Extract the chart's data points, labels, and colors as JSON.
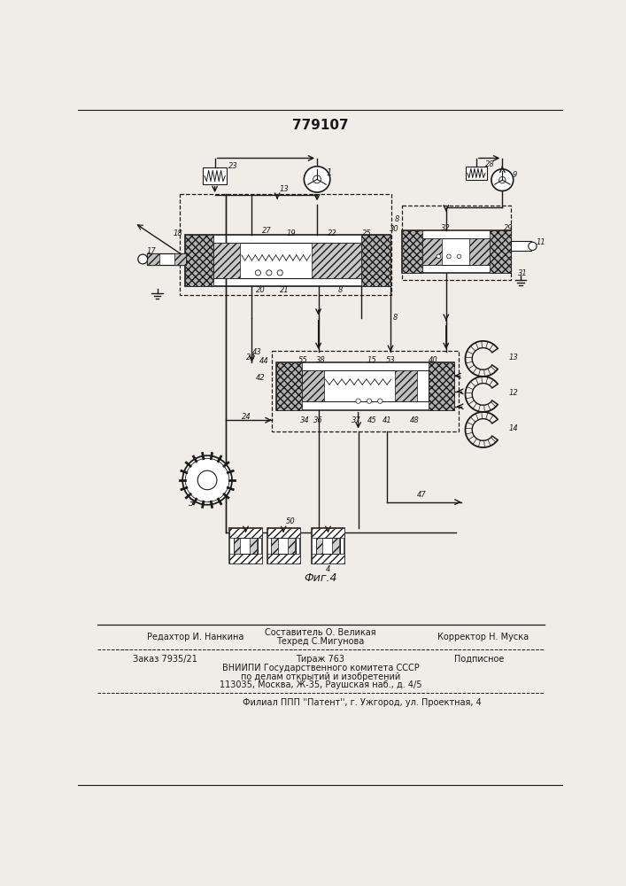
{
  "patent_number": "779107",
  "fig_label": "Фиг.4",
  "bg_color": "#f0ede8",
  "line_color": "#1a1a1a",
  "footer": {
    "line1_left": "Редахтор И. Нанкина",
    "line1_center_top": "Составитель О. Великая",
    "line1_center_bot": "Техред С.Мигунова",
    "line1_right": "Корректор Н. Муска",
    "line2_left": "Заказ 7935/21",
    "line2_center": "Тираж 763",
    "line2_right": "Подписное",
    "line3": "ВНИИПИ Государственного комитета СССР",
    "line4": "по делам открытий и изобретений",
    "line5": "113035, Москва, Ж-35, Раушская наб., д. 4/5",
    "line6": "Филиал ППП ''Патент'', г. Ужгород, ул. Проектная, 4"
  }
}
